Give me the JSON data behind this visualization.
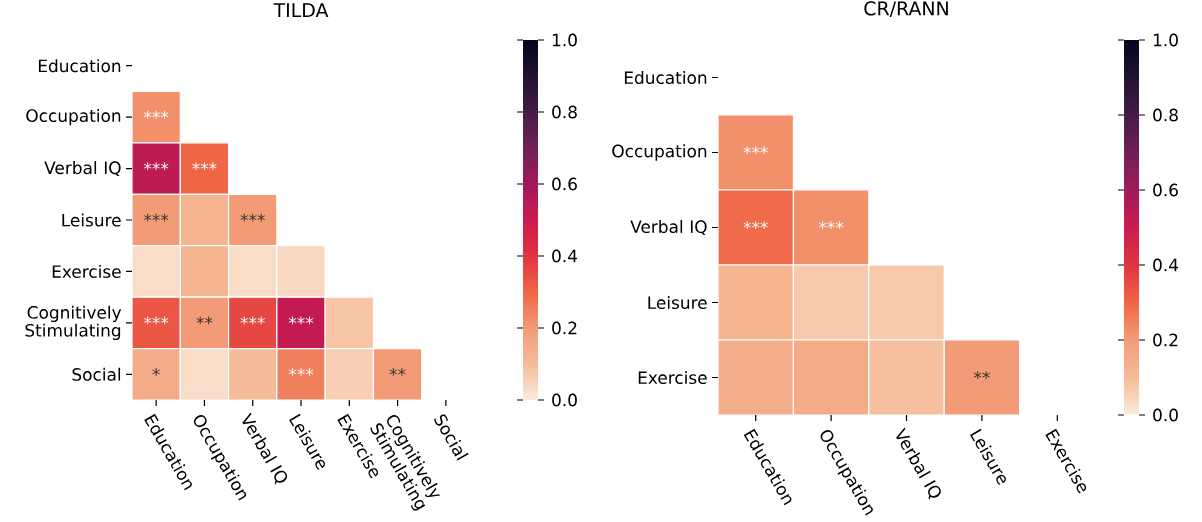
{
  "chart_data": [
    {
      "type": "heatmap",
      "title": "TILDA",
      "categories": [
        "Education",
        "Occupation",
        "Verbal IQ",
        "Leisure",
        "Exercise",
        "Cognitively Stimulating",
        "Social"
      ],
      "y_categories": [
        "Education",
        "Occupation",
        "Verbal IQ",
        "Leisure",
        "Exercise",
        "Cognitively Stimulating",
        "Social"
      ],
      "cells": [
        [
          null,
          null,
          null,
          null,
          null,
          null,
          null
        ],
        [
          0.22,
          null,
          null,
          null,
          null,
          null,
          null
        ],
        [
          0.53,
          0.3,
          null,
          null,
          null,
          null,
          null
        ],
        [
          0.2,
          0.12,
          0.2,
          null,
          null,
          null,
          null
        ],
        [
          0.03,
          0.12,
          0.03,
          0.04,
          null,
          null,
          null
        ],
        [
          0.33,
          0.2,
          0.36,
          0.52,
          0.08,
          null,
          null
        ],
        [
          0.15,
          0.03,
          0.1,
          0.25,
          0.06,
          0.2,
          null
        ]
      ],
      "cell_labels": [
        [
          null,
          null,
          null,
          null,
          null,
          null,
          null
        ],
        [
          "***",
          null,
          null,
          null,
          null,
          null,
          null
        ],
        [
          "***",
          "***",
          null,
          null,
          null,
          null,
          null
        ],
        [
          "***",
          null,
          "***",
          null,
          null,
          null,
          null
        ],
        [
          null,
          null,
          null,
          null,
          null,
          null,
          null
        ],
        [
          "***",
          "**",
          "***",
          "***",
          null,
          null,
          null
        ],
        [
          "*",
          null,
          null,
          "***",
          null,
          "**",
          null
        ]
      ],
      "clim": [
        0,
        1
      ],
      "cticks": [
        {
          "value": 0,
          "label": "0.0"
        },
        {
          "value": 0.2,
          "label": "0.2"
        },
        {
          "value": 0.4,
          "label": "0.4"
        },
        {
          "value": 0.6,
          "label": "0.6"
        },
        {
          "value": 0.8,
          "label": "0.8"
        },
        {
          "value": 1,
          "label": "1.0"
        }
      ]
    },
    {
      "type": "heatmap",
      "title": "CR/RANN",
      "categories": [
        "Education",
        "Occupation",
        "Verbal IQ",
        "Leisure",
        "Exercise"
      ],
      "y_categories": [
        "Education",
        "Occupation",
        "Verbal IQ",
        "Leisure",
        "Exercise"
      ],
      "cells": [
        [
          null,
          null,
          null,
          null,
          null
        ],
        [
          0.22,
          null,
          null,
          null,
          null
        ],
        [
          0.29,
          0.22,
          null,
          null,
          null
        ],
        [
          0.12,
          0.07,
          0.07,
          null,
          null
        ],
        [
          0.14,
          0.15,
          0.09,
          0.2,
          null
        ]
      ],
      "cell_labels": [
        [
          null,
          null,
          null,
          null,
          null
        ],
        [
          "***",
          null,
          null,
          null,
          null
        ],
        [
          "***",
          "***",
          null,
          null,
          null
        ],
        [
          null,
          null,
          null,
          null,
          null
        ],
        [
          null,
          null,
          null,
          "**",
          null
        ]
      ],
      "clim": [
        0,
        1
      ],
      "cticks": [
        {
          "value": 0,
          "label": "0.0"
        },
        {
          "value": 0.2,
          "label": "0.2"
        },
        {
          "value": 0.4,
          "label": "0.4"
        },
        {
          "value": 0.6,
          "label": "0.6"
        },
        {
          "value": 0.8,
          "label": "0.8"
        },
        {
          "value": 1,
          "label": "1.0"
        }
      ]
    }
  ]
}
